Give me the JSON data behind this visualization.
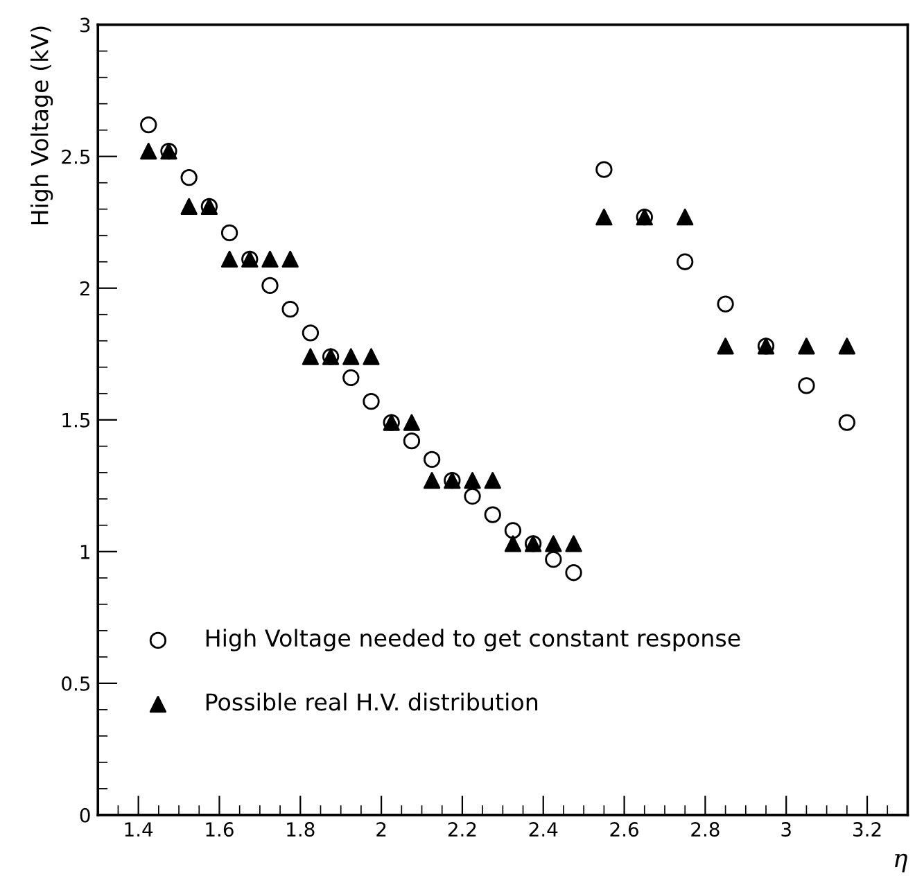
{
  "chart_data": {
    "type": "scatter",
    "xlabel": "η",
    "ylabel": "High Voltage (kV)",
    "xlim": [
      1.3,
      3.3
    ],
    "xticks": [
      1.4,
      1.6,
      1.8,
      2,
      2.2,
      2.4,
      2.6,
      2.8,
      3,
      3.2
    ],
    "ylim": [
      0,
      3
    ],
    "yticks": [
      0,
      0.5,
      1,
      1.5,
      2,
      2.5,
      3
    ],
    "grid": false,
    "legend": "bottom left",
    "series": [
      {
        "name": "High Voltage needed to get constant response",
        "color": "#000000",
        "marker": "circle",
        "x": [
          1.425,
          1.475,
          1.525,
          1.575,
          1.625,
          1.675,
          1.725,
          1.775,
          1.825,
          1.875,
          1.925,
          1.975,
          2.025,
          2.075,
          2.125,
          2.175,
          2.225,
          2.275,
          2.325,
          2.375,
          2.425,
          2.475,
          2.55,
          2.65,
          2.75,
          2.85,
          2.95,
          3.05,
          3.15
        ],
        "values": [
          2.62,
          2.52,
          2.42,
          2.31,
          2.21,
          2.11,
          2.01,
          1.92,
          1.83,
          1.74,
          1.66,
          1.57,
          1.49,
          1.42,
          1.35,
          1.27,
          1.21,
          1.14,
          1.08,
          1.03,
          0.97,
          0.92,
          2.45,
          2.27,
          2.1,
          1.94,
          1.78,
          1.63,
          1.49
        ]
      },
      {
        "name": "Possible real H.V. distribution",
        "color": "#000000",
        "marker": "triangle",
        "x": [
          1.425,
          1.475,
          1.525,
          1.575,
          1.625,
          1.675,
          1.725,
          1.775,
          1.825,
          1.875,
          1.925,
          1.975,
          2.025,
          2.075,
          2.125,
          2.175,
          2.225,
          2.275,
          2.325,
          2.375,
          2.425,
          2.475,
          2.55,
          2.65,
          2.75,
          2.85,
          2.95,
          3.05,
          3.15
        ],
        "values": [
          2.52,
          2.52,
          2.31,
          2.31,
          2.11,
          2.11,
          2.11,
          2.11,
          1.74,
          1.74,
          1.74,
          1.74,
          1.49,
          1.49,
          1.27,
          1.27,
          1.27,
          1.27,
          1.03,
          1.03,
          1.03,
          1.03,
          2.27,
          2.27,
          2.27,
          1.78,
          1.78,
          1.78,
          1.78
        ]
      }
    ]
  }
}
